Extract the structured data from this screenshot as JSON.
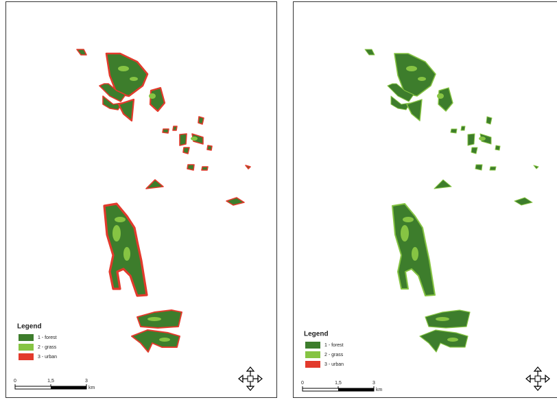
{
  "panels": [
    {
      "legend": {
        "title": "Legend",
        "items": [
          "1 - forest",
          "2 - grass",
          "3 - urban"
        ]
      },
      "scale_bar": {
        "labels": [
          "0",
          "1,5",
          "3"
        ],
        "unit": "km"
      }
    },
    {
      "legend": {
        "title": "Legend",
        "items": [
          "1 - forest",
          "2 - grass",
          "3 - urban"
        ]
      },
      "scale_bar": {
        "labels": [
          "0",
          "1,5",
          "3"
        ],
        "unit": "km"
      }
    }
  ]
}
